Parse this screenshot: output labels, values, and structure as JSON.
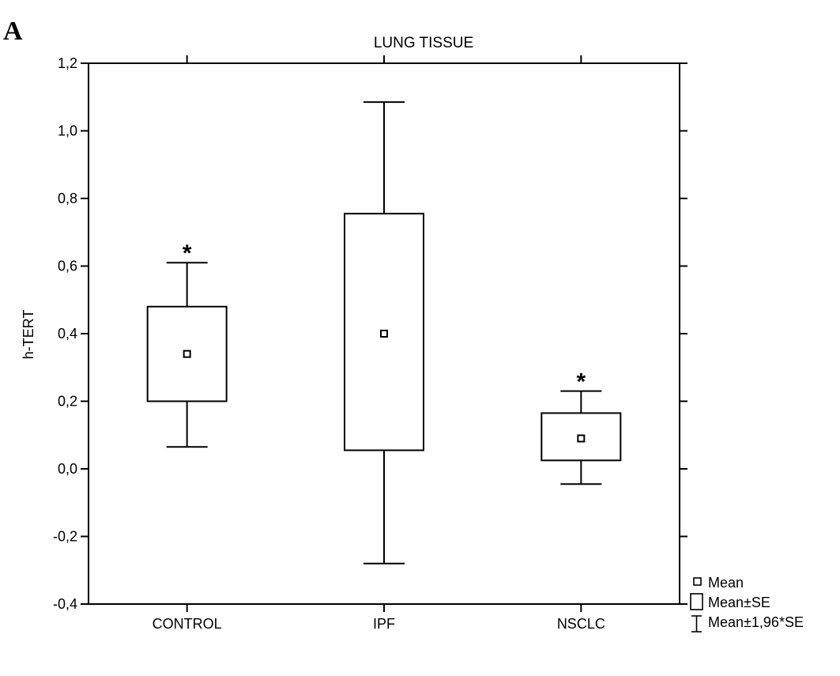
{
  "panel_label": "A",
  "chart_data": {
    "type": "box",
    "title": "LUNG TISSUE",
    "xlabel": "",
    "ylabel": "h-TERT",
    "ylim": [
      -0.4,
      1.2
    ],
    "yticks": [
      -0.4,
      -0.2,
      0.0,
      0.2,
      0.4,
      0.6,
      0.8,
      1.0,
      1.2
    ],
    "ytick_labels": [
      "-0,4",
      "-0,2",
      "0,0",
      "0,2",
      "0,4",
      "0,6",
      "0,8",
      "1,0",
      "1,2"
    ],
    "categories": [
      "CONTROL",
      "IPF",
      "NSCLC"
    ],
    "mean": [
      0.34,
      0.4,
      0.09
    ],
    "se_low": [
      0.2,
      0.055,
      0.025
    ],
    "se_high": [
      0.48,
      0.755,
      0.165
    ],
    "ci_low": [
      0.065,
      -0.28,
      -0.045
    ],
    "ci_high": [
      0.61,
      1.085,
      0.23
    ],
    "significance": [
      "*",
      "",
      "*"
    ],
    "legend": {
      "placement": "bottom-right",
      "entries": [
        "Mean",
        "Mean±SE",
        "Mean±1,96*SE"
      ]
    },
    "grid": false,
    "colors": {
      "stroke": "#000000",
      "fill": "#ffffff"
    }
  }
}
